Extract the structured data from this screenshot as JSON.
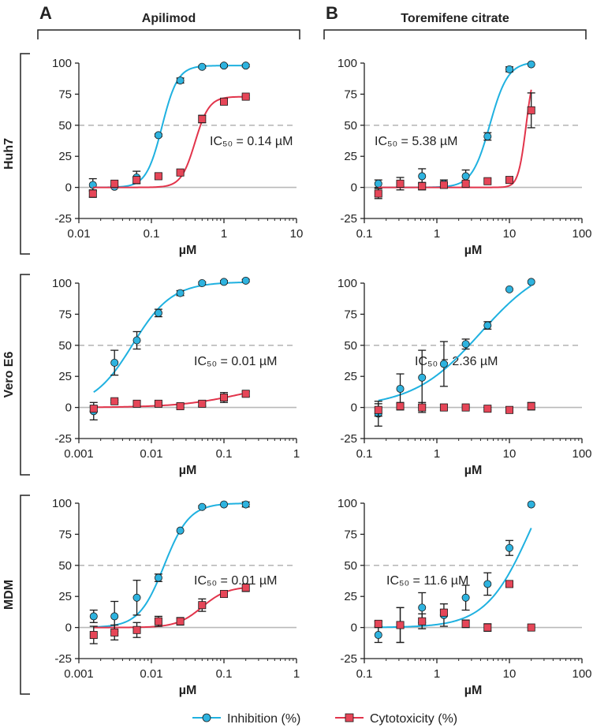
{
  "colors": {
    "inhibition": "#1fb1e0",
    "inhibition_marker": "#2eb3df",
    "cytotoxicity": "#e2344b",
    "cytotoxicity_marker": "#e64658",
    "reference_line": "#b9b9b9",
    "axis": "#222222"
  },
  "panels": {
    "A": "A",
    "B": "B"
  },
  "drugs": {
    "A": "Apilimod",
    "B": "Toremifene citrate"
  },
  "rows": [
    "Huh7",
    "Vero E6",
    "MDM"
  ],
  "legend": {
    "inhibition": "Inhibition (%)",
    "cytotoxicity": "Cytotoxicity (%)"
  },
  "chart_data": [
    {
      "id": "huh7-apilimod",
      "type": "scatter",
      "row": "Huh7",
      "drug": "Apilimod",
      "xlabel": "µM",
      "xscale": "log",
      "xlim": [
        0.01,
        10
      ],
      "xticks": [
        0.01,
        0.1,
        1,
        10
      ],
      "xticklabels": [
        "0.01",
        "0.1",
        "1",
        "10"
      ],
      "ylim": [
        -25,
        100
      ],
      "yticks": [
        -25,
        0,
        25,
        50,
        75,
        100
      ],
      "yticklabels": [
        "-25",
        "0",
        "25",
        "50",
        "75",
        "100"
      ],
      "reference_line_y": 50,
      "ic50_label": "IC₅₀ = 0.14 µM",
      "series": [
        {
          "name": "Inhibition (%)",
          "x": [
            0.0156,
            0.031,
            0.0625,
            0.125,
            0.25,
            0.5,
            1,
            2
          ],
          "y": [
            2,
            0.5,
            8,
            42,
            86,
            97,
            98,
            98
          ],
          "err": [
            5,
            1,
            5,
            1,
            2,
            1,
            1,
            1
          ],
          "curve": {
            "bottom": 0,
            "top": 98,
            "ec50": 0.14,
            "hill": 4,
            "xrange": [
              0.0156,
              2
            ]
          }
        },
        {
          "name": "Cytotoxicity (%)",
          "x": [
            0.0156,
            0.031,
            0.0625,
            0.125,
            0.25,
            0.5,
            1,
            2
          ],
          "y": [
            -5,
            3,
            6,
            9,
            12,
            55,
            69,
            73
          ],
          "err": [
            3,
            0,
            0,
            0,
            0,
            3,
            1,
            1
          ],
          "curve": {
            "bottom": 0,
            "top": 73,
            "ec50": 0.4,
            "hill": 4.5,
            "xrange": [
              0.0156,
              2
            ]
          }
        }
      ]
    },
    {
      "id": "huh7-toremifene",
      "type": "scatter",
      "row": "Huh7",
      "drug": "Toremifene citrate",
      "xlabel": "µM",
      "xscale": "log",
      "xlim": [
        0.1,
        100
      ],
      "xticks": [
        0.1,
        1,
        10,
        100
      ],
      "xticklabels": [
        "0.1",
        "1",
        "10",
        "100"
      ],
      "ylim": [
        -25,
        100
      ],
      "yticks": [
        -25,
        0,
        25,
        50,
        75,
        100
      ],
      "yticklabels": [
        "-25",
        "0",
        "25",
        "50",
        "75",
        "100"
      ],
      "reference_line_y": 50,
      "ic50_label": "IC₅₀ = 5.38 µM",
      "series": [
        {
          "name": "Inhibition (%)",
          "x": [
            0.156,
            0.3125,
            0.625,
            1.25,
            2.5,
            5,
            10,
            20
          ],
          "y": [
            3,
            3,
            9,
            3,
            9,
            41,
            95,
            99
          ],
          "err": [
            3,
            5,
            6,
            3,
            5,
            3,
            2,
            0
          ],
          "curve": {
            "bottom": 0,
            "top": 101,
            "ec50": 5.38,
            "hill": 3.5,
            "xrange": [
              0.156,
              20
            ]
          }
        },
        {
          "name": "Cytotoxicity (%)",
          "x": [
            0.156,
            0.3125,
            0.625,
            1.25,
            2.5,
            5,
            10,
            20
          ],
          "y": [
            -5,
            3,
            1,
            2,
            3,
            5,
            6,
            62
          ],
          "err": [
            4,
            0,
            3,
            0,
            2,
            0,
            0,
            14
          ],
          "curve": {
            "bottom": 0,
            "top": 100,
            "ec50": 17,
            "hill": 8,
            "xrange": [
              0.156,
              20
            ]
          }
        }
      ]
    },
    {
      "id": "vero-apilimod",
      "type": "scatter",
      "row": "Vero E6",
      "drug": "Apilimod",
      "xlabel": "µM",
      "xscale": "log",
      "xlim": [
        0.001,
        1
      ],
      "xticks": [
        0.001,
        0.01,
        0.1,
        1
      ],
      "xticklabels": [
        "0.001",
        "0.01",
        "0.1",
        "1"
      ],
      "ylim": [
        -25,
        100
      ],
      "yticks": [
        -25,
        0,
        25,
        50,
        75,
        100
      ],
      "yticklabels": [
        "-25",
        "0",
        "25",
        "50",
        "75",
        "100"
      ],
      "reference_line_y": 50,
      "ic50_label": "IC₅₀ = 0.01 µM",
      "series": [
        {
          "name": "Inhibition (%)",
          "x": [
            0.0016,
            0.0031,
            0.0063,
            0.0125,
            0.025,
            0.05,
            0.1,
            0.2
          ],
          "y": [
            -3,
            36,
            54,
            76,
            92,
            100,
            101,
            102
          ],
          "err": [
            7,
            10,
            7,
            3,
            2,
            1,
            1,
            1
          ],
          "curve": {
            "bottom": 0,
            "top": 101,
            "ec50": 0.0055,
            "hill": 1.6,
            "xrange": [
              0.0016,
              0.2
            ]
          }
        },
        {
          "name": "Cytotoxicity (%)",
          "x": [
            0.0016,
            0.0031,
            0.0063,
            0.0125,
            0.025,
            0.05,
            0.1,
            0.2
          ],
          "y": [
            -1,
            5,
            3,
            3,
            1,
            3,
            8,
            11
          ],
          "err": [
            2,
            1,
            2,
            1,
            1,
            2,
            4,
            2
          ],
          "curve": {
            "bottom": 0,
            "top": 22,
            "ec50": 0.18,
            "hill": 1,
            "xrange": [
              0.0016,
              0.2
            ]
          }
        }
      ]
    },
    {
      "id": "vero-toremifene",
      "type": "scatter",
      "row": "Vero E6",
      "drug": "Toremifene citrate",
      "xlabel": "µM",
      "xscale": "log",
      "xlim": [
        0.1,
        100
      ],
      "xticks": [
        0.1,
        1,
        10,
        100
      ],
      "xticklabels": [
        "0.1",
        "1",
        "10",
        "100"
      ],
      "ylim": [
        -25,
        100
      ],
      "yticks": [
        -25,
        0,
        25,
        50,
        75,
        100
      ],
      "yticklabels": [
        "-25",
        "0",
        "25",
        "50",
        "75",
        "100"
      ],
      "reference_line_y": 50,
      "ic50_label": "IC₅₀ = 2.36 µM",
      "series": [
        {
          "name": "Inhibition (%)",
          "x": [
            0.156,
            0.3125,
            0.625,
            1.25,
            2.5,
            5,
            10,
            20
          ],
          "y": [
            -5,
            15,
            24,
            35,
            51,
            66,
            95,
            101
          ],
          "err": [
            10,
            12,
            22,
            18,
            4,
            3,
            0,
            0
          ],
          "curve": {
            "bottom": 0,
            "top": 120,
            "ec50": 4,
            "hill": 0.93,
            "xrange": [
              0.156,
              20
            ]
          }
        },
        {
          "name": "Cytotoxicity (%)",
          "x": [
            0.156,
            0.3125,
            0.625,
            1.25,
            2.5,
            5,
            10,
            20
          ],
          "y": [
            -2,
            1,
            0,
            0,
            0,
            -1,
            -2,
            1
          ],
          "err": [
            5,
            3,
            4,
            2,
            1,
            1,
            1,
            3
          ],
          "curve": null
        }
      ]
    },
    {
      "id": "mdm-apilimod",
      "type": "scatter",
      "row": "MDM",
      "drug": "Apilimod",
      "xlabel": "µM",
      "xscale": "log",
      "xlim": [
        0.001,
        1
      ],
      "xticks": [
        0.001,
        0.01,
        0.1,
        1
      ],
      "xticklabels": [
        "0.001",
        "0.01",
        "0.1",
        "1"
      ],
      "ylim": [
        -25,
        100
      ],
      "yticks": [
        -25,
        0,
        25,
        50,
        75,
        100
      ],
      "yticklabels": [
        "-25",
        "0",
        "25",
        "50",
        "75",
        "100"
      ],
      "reference_line_y": 50,
      "ic50_label": "IC₅₀ = 0.01 µM",
      "series": [
        {
          "name": "Inhibition (%)",
          "x": [
            0.0016,
            0.0031,
            0.0063,
            0.0125,
            0.025,
            0.05,
            0.1,
            0.2
          ],
          "y": [
            9,
            9,
            24,
            40,
            78,
            97,
            99,
            99
          ],
          "err": [
            5,
            12,
            14,
            3,
            0,
            1,
            0,
            2
          ],
          "curve": {
            "bottom": 0,
            "top": 100,
            "ec50": 0.015,
            "hill": 2.5,
            "xrange": [
              0.0016,
              0.2
            ]
          }
        },
        {
          "name": "Cytotoxicity (%)",
          "x": [
            0.0016,
            0.0031,
            0.0063,
            0.0125,
            0.025,
            0.05,
            0.1,
            0.2
          ],
          "y": [
            -6,
            -4,
            -2,
            5,
            5,
            18,
            27,
            32
          ],
          "err": [
            7,
            6,
            6,
            4,
            3,
            5,
            2,
            3
          ],
          "curve": {
            "bottom": 0,
            "top": 33,
            "ec50": 0.05,
            "hill": 2.5,
            "xrange": [
              0.0016,
              0.2
            ]
          }
        }
      ]
    },
    {
      "id": "mdm-toremifene",
      "type": "scatter",
      "row": "MDM",
      "drug": "Toremifene citrate",
      "xlabel": "µM",
      "xscale": "log",
      "xlim": [
        0.1,
        100
      ],
      "xticks": [
        0.1,
        1,
        10,
        100
      ],
      "xticklabels": [
        "0.1",
        "1",
        "10",
        "100"
      ],
      "ylim": [
        -25,
        100
      ],
      "yticks": [
        -25,
        0,
        25,
        50,
        75,
        100
      ],
      "yticklabels": [
        "-25",
        "0",
        "25",
        "50",
        "75",
        "100"
      ],
      "reference_line_y": 50,
      "ic50_label": "IC₅₀ = 11.6 µM",
      "series": [
        {
          "name": "Inhibition (%)",
          "x": [
            0.156,
            0.3125,
            0.625,
            1.25,
            2.5,
            5,
            10,
            20
          ],
          "y": [
            -6,
            2,
            16,
            10,
            24,
            35,
            64,
            99
          ],
          "err": [
            6,
            14,
            12,
            9,
            10,
            9,
            6,
            0
          ],
          "curve": {
            "bottom": 0,
            "top": 160,
            "ec50": 20,
            "hill": 1.4,
            "xrange": [
              0.156,
              20
            ]
          }
        },
        {
          "name": "Cytotoxicity (%)",
          "x": [
            0.156,
            0.3125,
            0.625,
            1.25,
            2.5,
            5,
            10,
            20
          ],
          "y": [
            3,
            2,
            5,
            12,
            3,
            0,
            35,
            0
          ],
          "err": [
            2,
            14,
            6,
            2,
            3,
            3,
            2,
            0
          ],
          "curve": null
        }
      ]
    }
  ]
}
